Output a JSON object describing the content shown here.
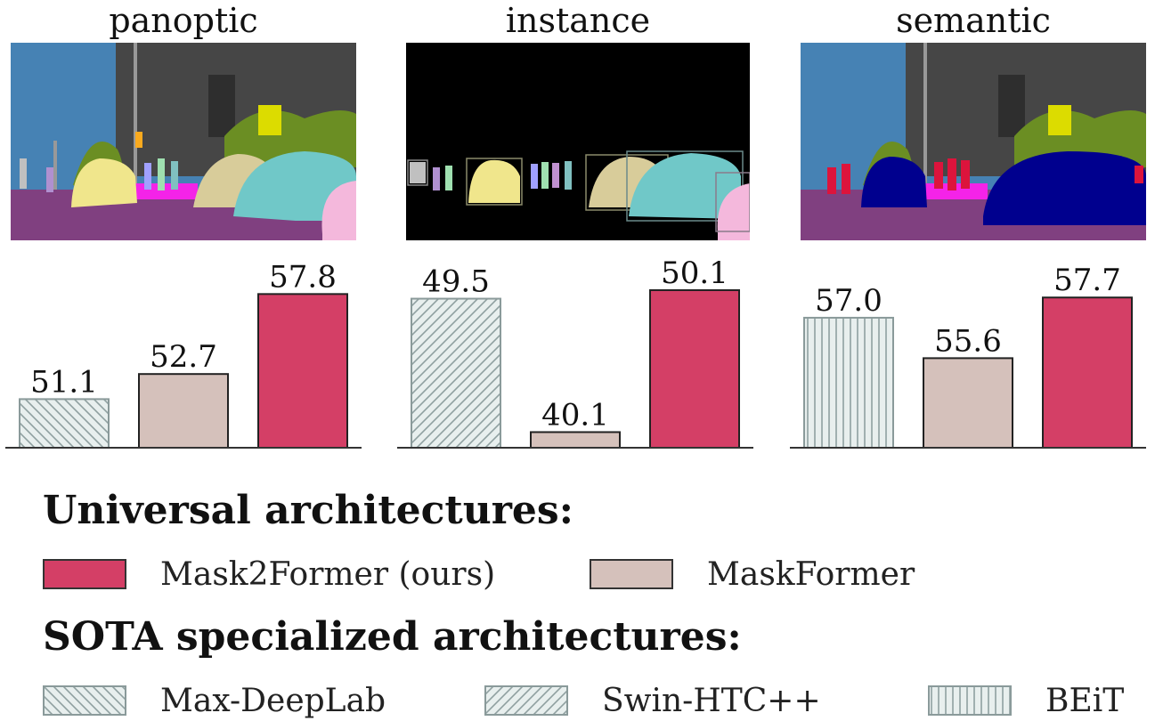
{
  "panels": [
    {
      "title": "panoptic"
    },
    {
      "title": "instance"
    },
    {
      "title": "semantic"
    }
  ],
  "chart_data": [
    {
      "type": "bar",
      "title": "panoptic",
      "categories": [
        "Max-DeepLab",
        "MaskFormer",
        "Mask2Former (ours)"
      ],
      "values": [
        51.1,
        52.7,
        57.8
      ],
      "value_labels": [
        "51.1",
        "52.7",
        "57.8"
      ],
      "ylim": [
        48.0,
        58.5
      ],
      "xlabel": "",
      "ylabel": ""
    },
    {
      "type": "bar",
      "title": "instance",
      "categories": [
        "Swin-HTC++",
        "MaskFormer",
        "Mask2Former (ours)"
      ],
      "values": [
        49.5,
        40.1,
        50.1
      ],
      "value_labels": [
        "49.5",
        "40.1",
        "50.1"
      ],
      "ylim": [
        39.0,
        50.6
      ],
      "xlabel": "",
      "ylabel": ""
    },
    {
      "type": "bar",
      "title": "semantic",
      "categories": [
        "BEiT",
        "MaskFormer",
        "Mask2Former (ours)"
      ],
      "values": [
        57.0,
        55.6,
        57.7
      ],
      "value_labels": [
        "57.0",
        "55.6",
        "57.7"
      ],
      "ylim": [
        52.5,
        58.2
      ],
      "xlabel": "",
      "ylabel": ""
    }
  ],
  "legend": {
    "universal_heading": "Universal architectures:",
    "specialized_heading": "SOTA specialized architectures:",
    "universal": [
      {
        "label": "Mask2Former (ours)",
        "fill": "#d43f66",
        "pattern": "solid"
      },
      {
        "label": "MaskFormer",
        "fill": "#d5c1bb",
        "pattern": "solid"
      }
    ],
    "specialized": [
      {
        "label": "Max-DeepLab",
        "fill": "#e8efee",
        "pattern": "backslash-hatch"
      },
      {
        "label": "Swin-HTC++",
        "fill": "#e8efee",
        "pattern": "slash-hatch"
      },
      {
        "label": "BEiT",
        "fill": "#e8efee",
        "pattern": "vertical-hatch"
      }
    ]
  },
  "colors": {
    "mask2former": "#d43f66",
    "maskformer": "#d5c1bb",
    "specialized_bg": "#e8efee",
    "hatch": "#8fa0a0"
  }
}
